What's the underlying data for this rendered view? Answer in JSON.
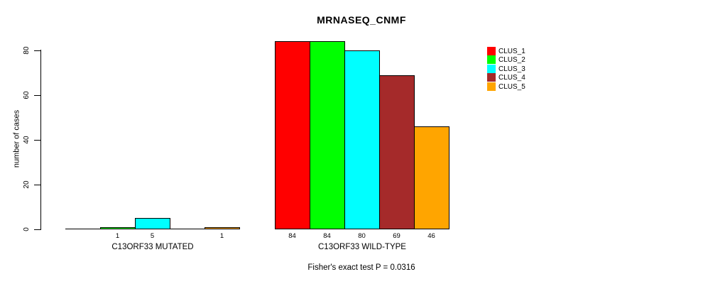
{
  "chart_data": {
    "type": "bar",
    "title": "MRNASEQ_CNMF",
    "ylabel": "number of cases",
    "xlabel": "",
    "categories": [
      "C13ORF33 MUTATED",
      "C13ORF33 WILD-TYPE"
    ],
    "series": [
      {
        "name": "CLUS_1",
        "color": "#FF0000",
        "values": [
          0,
          84
        ]
      },
      {
        "name": "CLUS_2",
        "color": "#00FF00",
        "values": [
          1,
          84
        ]
      },
      {
        "name": "CLUS_3",
        "color": "#00FFFF",
        "values": [
          5,
          80
        ]
      },
      {
        "name": "CLUS_4",
        "color": "#A52A2A",
        "values": [
          0,
          69
        ]
      },
      {
        "name": "CLUS_5",
        "color": "#FFA500",
        "values": [
          1,
          46
        ]
      }
    ],
    "yticks": [
      0,
      20,
      40,
      60,
      80
    ],
    "ylim": [
      0,
      80
    ],
    "grid": false,
    "legend_position": "top-right",
    "bar_label_rule": "value shown under each bar when greater than 0",
    "annotation": "Fisher's exact test P = 0.0316",
    "axis_color": "#000000",
    "bar_border_color": "#000000",
    "background_color": "#FFFFFF"
  }
}
